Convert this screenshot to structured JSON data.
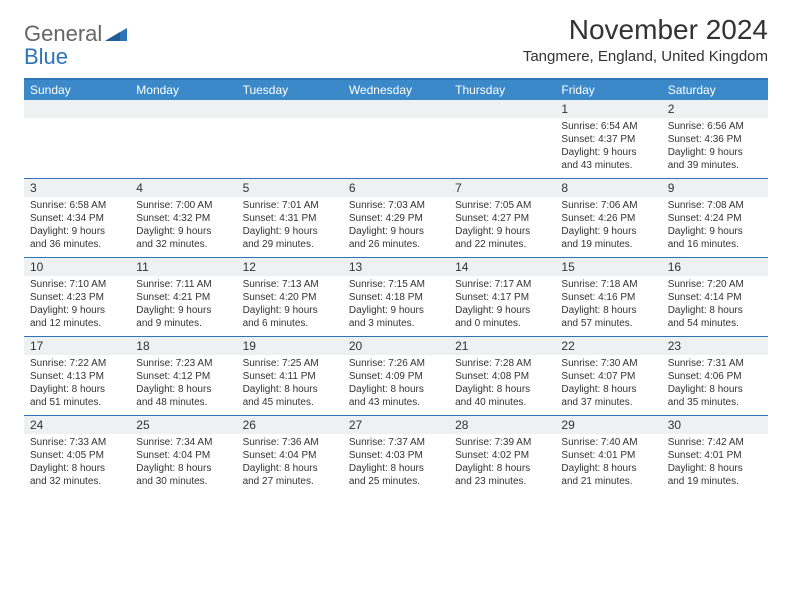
{
  "brand": {
    "word1": "General",
    "word2": "Blue",
    "logo_fill": "#2d74b8"
  },
  "title": "November 2024",
  "location": "Tangmere, England, United Kingdom",
  "colors": {
    "header_bg": "#3b89c9",
    "header_border": "#2d74b8",
    "shade_bg": "#eef0f1",
    "text": "#333333"
  },
  "day_headers": [
    "Sunday",
    "Monday",
    "Tuesday",
    "Wednesday",
    "Thursday",
    "Friday",
    "Saturday"
  ],
  "weeks": [
    {
      "nums": [
        "",
        "",
        "",
        "",
        "",
        "1",
        "2"
      ],
      "sunrise": [
        "",
        "",
        "",
        "",
        "",
        "Sunrise: 6:54 AM",
        "Sunrise: 6:56 AM"
      ],
      "sunset": [
        "",
        "",
        "",
        "",
        "",
        "Sunset: 4:37 PM",
        "Sunset: 4:36 PM"
      ],
      "day_a": [
        "",
        "",
        "",
        "",
        "",
        "Daylight: 9 hours",
        "Daylight: 9 hours"
      ],
      "day_b": [
        "",
        "",
        "",
        "",
        "",
        "and 43 minutes.",
        "and 39 minutes."
      ]
    },
    {
      "nums": [
        "3",
        "4",
        "5",
        "6",
        "7",
        "8",
        "9"
      ],
      "sunrise": [
        "Sunrise: 6:58 AM",
        "Sunrise: 7:00 AM",
        "Sunrise: 7:01 AM",
        "Sunrise: 7:03 AM",
        "Sunrise: 7:05 AM",
        "Sunrise: 7:06 AM",
        "Sunrise: 7:08 AM"
      ],
      "sunset": [
        "Sunset: 4:34 PM",
        "Sunset: 4:32 PM",
        "Sunset: 4:31 PM",
        "Sunset: 4:29 PM",
        "Sunset: 4:27 PM",
        "Sunset: 4:26 PM",
        "Sunset: 4:24 PM"
      ],
      "day_a": [
        "Daylight: 9 hours",
        "Daylight: 9 hours",
        "Daylight: 9 hours",
        "Daylight: 9 hours",
        "Daylight: 9 hours",
        "Daylight: 9 hours",
        "Daylight: 9 hours"
      ],
      "day_b": [
        "and 36 minutes.",
        "and 32 minutes.",
        "and 29 minutes.",
        "and 26 minutes.",
        "and 22 minutes.",
        "and 19 minutes.",
        "and 16 minutes."
      ]
    },
    {
      "nums": [
        "10",
        "11",
        "12",
        "13",
        "14",
        "15",
        "16"
      ],
      "sunrise": [
        "Sunrise: 7:10 AM",
        "Sunrise: 7:11 AM",
        "Sunrise: 7:13 AM",
        "Sunrise: 7:15 AM",
        "Sunrise: 7:17 AM",
        "Sunrise: 7:18 AM",
        "Sunrise: 7:20 AM"
      ],
      "sunset": [
        "Sunset: 4:23 PM",
        "Sunset: 4:21 PM",
        "Sunset: 4:20 PM",
        "Sunset: 4:18 PM",
        "Sunset: 4:17 PM",
        "Sunset: 4:16 PM",
        "Sunset: 4:14 PM"
      ],
      "day_a": [
        "Daylight: 9 hours",
        "Daylight: 9 hours",
        "Daylight: 9 hours",
        "Daylight: 9 hours",
        "Daylight: 9 hours",
        "Daylight: 8 hours",
        "Daylight: 8 hours"
      ],
      "day_b": [
        "and 12 minutes.",
        "and 9 minutes.",
        "and 6 minutes.",
        "and 3 minutes.",
        "and 0 minutes.",
        "and 57 minutes.",
        "and 54 minutes."
      ]
    },
    {
      "nums": [
        "17",
        "18",
        "19",
        "20",
        "21",
        "22",
        "23"
      ],
      "sunrise": [
        "Sunrise: 7:22 AM",
        "Sunrise: 7:23 AM",
        "Sunrise: 7:25 AM",
        "Sunrise: 7:26 AM",
        "Sunrise: 7:28 AM",
        "Sunrise: 7:30 AM",
        "Sunrise: 7:31 AM"
      ],
      "sunset": [
        "Sunset: 4:13 PM",
        "Sunset: 4:12 PM",
        "Sunset: 4:11 PM",
        "Sunset: 4:09 PM",
        "Sunset: 4:08 PM",
        "Sunset: 4:07 PM",
        "Sunset: 4:06 PM"
      ],
      "day_a": [
        "Daylight: 8 hours",
        "Daylight: 8 hours",
        "Daylight: 8 hours",
        "Daylight: 8 hours",
        "Daylight: 8 hours",
        "Daylight: 8 hours",
        "Daylight: 8 hours"
      ],
      "day_b": [
        "and 51 minutes.",
        "and 48 minutes.",
        "and 45 minutes.",
        "and 43 minutes.",
        "and 40 minutes.",
        "and 37 minutes.",
        "and 35 minutes."
      ]
    },
    {
      "nums": [
        "24",
        "25",
        "26",
        "27",
        "28",
        "29",
        "30"
      ],
      "sunrise": [
        "Sunrise: 7:33 AM",
        "Sunrise: 7:34 AM",
        "Sunrise: 7:36 AM",
        "Sunrise: 7:37 AM",
        "Sunrise: 7:39 AM",
        "Sunrise: 7:40 AM",
        "Sunrise: 7:42 AM"
      ],
      "sunset": [
        "Sunset: 4:05 PM",
        "Sunset: 4:04 PM",
        "Sunset: 4:04 PM",
        "Sunset: 4:03 PM",
        "Sunset: 4:02 PM",
        "Sunset: 4:01 PM",
        "Sunset: 4:01 PM"
      ],
      "day_a": [
        "Daylight: 8 hours",
        "Daylight: 8 hours",
        "Daylight: 8 hours",
        "Daylight: 8 hours",
        "Daylight: 8 hours",
        "Daylight: 8 hours",
        "Daylight: 8 hours"
      ],
      "day_b": [
        "and 32 minutes.",
        "and 30 minutes.",
        "and 27 minutes.",
        "and 25 minutes.",
        "and 23 minutes.",
        "and 21 minutes.",
        "and 19 minutes."
      ]
    }
  ]
}
